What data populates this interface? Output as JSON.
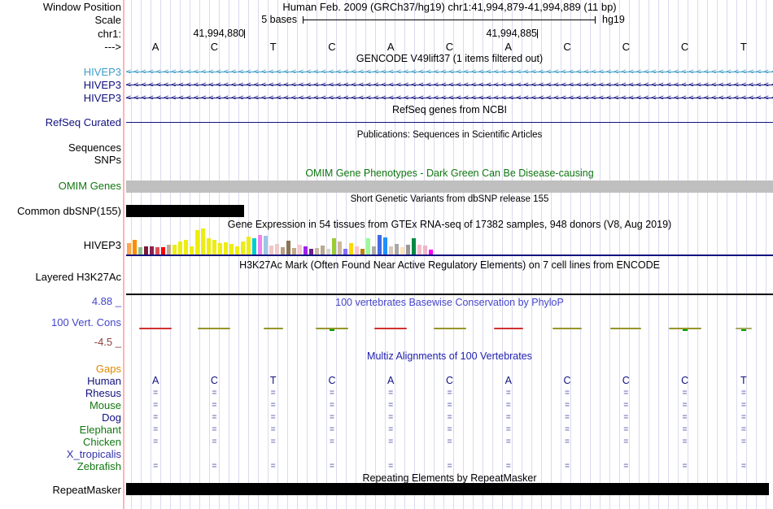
{
  "header": {
    "assembly_position_line": "Human Feb. 2009 (GRCh37/hg19)   chr1:41,994,879-41,994,889 (11 bp)"
  },
  "gutter": {
    "window_position_label": "Window Position",
    "scale_label": "Scale",
    "chrom_label": "chr1:",
    "strand_label": "--->"
  },
  "scale": {
    "bases_label": "5 bases",
    "genome_label": "hg19"
  },
  "position_ticks": {
    "tick1": "41,994,880",
    "tick2": "41,994,885"
  },
  "sequence": {
    "bases": [
      "A",
      "C",
      "T",
      "C",
      "A",
      "C",
      "A",
      "C",
      "C",
      "C",
      "T"
    ]
  },
  "tracks": {
    "gencode": {
      "title": "GENCODE V49lift37 (1 items filtered out)",
      "transcripts": [
        {
          "label": "HIVEP3",
          "color": "#3E9CC8"
        },
        {
          "label": "HIVEP3",
          "color": "#10107E"
        },
        {
          "label": "HIVEP3",
          "color": "#10107E"
        }
      ],
      "arrow_icon": "<"
    },
    "refseq": {
      "title": "RefSeq genes from NCBI",
      "label": "RefSeq Curated",
      "line_color": "#10107E"
    },
    "publications": {
      "title": "Publications: Sequences in Scientific Articles",
      "label_sequences": "Sequences",
      "label_snps": "SNPs"
    },
    "omim": {
      "title": "OMIM Gene Phenotypes - Dark Green Can Be Disease-causing",
      "label": "OMIM Genes",
      "title_color": "#117711",
      "bar_color": "#BFBFBF"
    },
    "dbsnp": {
      "title": "Short Genetic Variants from dbSNP release 155",
      "label": "Common dbSNP(155)",
      "bar_color": "#000000"
    },
    "gtex": {
      "title": "Gene Expression in 54 tissues from GTEx RNA-seq of 17382 samples, 948 donors (V8, Aug 2019)",
      "label": "HIVEP3",
      "baseline_color": "#10107E",
      "bars": [
        [
          "#FFA54F",
          14
        ],
        [
          "#FF8C00",
          18
        ],
        [
          "#8FBC8F",
          9
        ],
        [
          "#7A1A3C",
          10
        ],
        [
          "#8B2252",
          10
        ],
        [
          "#E05050",
          9
        ],
        [
          "#FF0000",
          9
        ],
        [
          "#C0A890",
          12
        ],
        [
          "#EDED12",
          12
        ],
        [
          "#EDED12",
          16
        ],
        [
          "#EDED12",
          18
        ],
        [
          "#EDED12",
          10
        ],
        [
          "#EDED12",
          30
        ],
        [
          "#EDED12",
          32
        ],
        [
          "#EDED12",
          20
        ],
        [
          "#EDED12",
          18
        ],
        [
          "#EDED12",
          14
        ],
        [
          "#EDED12",
          15
        ],
        [
          "#EDED12",
          13
        ],
        [
          "#EDED12",
          10
        ],
        [
          "#EDED12",
          16
        ],
        [
          "#EDED12",
          22
        ],
        [
          "#00CED1",
          20
        ],
        [
          "#EE82EE",
          24
        ],
        [
          "#A0C4E4",
          23
        ],
        [
          "#F2C4C4",
          11
        ],
        [
          "#EFC9C9",
          13
        ],
        [
          "#B8A088",
          9
        ],
        [
          "#8B7355",
          17
        ],
        [
          "#C4A884",
          8
        ],
        [
          "#F4C8D0",
          12
        ],
        [
          "#A020F0",
          10
        ],
        [
          "#68228B",
          7
        ],
        [
          "#C8B7A6",
          8
        ],
        [
          "#B8A890",
          11
        ],
        [
          "#D3D3D3",
          7
        ],
        [
          "#9ACD32",
          20
        ],
        [
          "#CDB79E",
          16
        ],
        [
          "#8470FF",
          7
        ],
        [
          "#FFD700",
          14
        ],
        [
          "#FFC0CB",
          10
        ],
        [
          "#B8860B",
          7
        ],
        [
          "#98FB98",
          20
        ],
        [
          "#A9A9A9",
          10
        ],
        [
          "#4169E1",
          24
        ],
        [
          "#1E90FF",
          21
        ],
        [
          "#D8C8B8",
          10
        ],
        [
          "#A8A8A8",
          13
        ],
        [
          "#FFE4B5",
          9
        ],
        [
          "#989898",
          12
        ],
        [
          "#008B45",
          20
        ],
        [
          "#F4BCC8",
          12
        ],
        [
          "#EEB4C8",
          11
        ],
        [
          "#FF00FF",
          6
        ]
      ]
    },
    "h3k27ac": {
      "title": "H3K27Ac Mark (Often Found Near Active Regulatory Elements) on 7 cell lines from ENCODE",
      "label": "Layered H3K27Ac",
      "baseline_color": "#000000"
    },
    "conservation": {
      "title": "100 vertebrates Basewise Conservation by PhyloP",
      "title_color": "#4545CC",
      "label": "100 Vert. Cons",
      "max_label": "4.88 _",
      "min_label": "-4.5 _",
      "min_label_color": "#8B4040",
      "marks": [
        [
          "#D03030",
          40,
          false
        ],
        [
          "#96962A",
          40,
          false
        ],
        [
          "#96962A",
          24,
          false
        ],
        [
          "#96962A",
          40,
          true
        ],
        [
          "#D03030",
          40,
          false
        ],
        [
          "#96962A",
          40,
          false
        ],
        [
          "#D03030",
          36,
          false
        ],
        [
          "#96962A",
          36,
          false
        ],
        [
          "#96962A",
          38,
          false
        ],
        [
          "#96962A",
          40,
          true
        ],
        [
          "#A8A860",
          20,
          true
        ]
      ]
    },
    "multiz": {
      "title": "Multiz Alignments of 100 Vertebrates",
      "title_color": "#2020B0",
      "eq_mark": "=",
      "eq_color": "#7878BC",
      "letter_color": "#10107E",
      "species": [
        {
          "label": "Gaps",
          "color": "#DD8800",
          "marks": "none"
        },
        {
          "label": "Human",
          "color": "#10107E",
          "marks": "letters"
        },
        {
          "label": "Rhesus",
          "color": "#10107E",
          "marks": "eq"
        },
        {
          "label": "Mouse",
          "color": "#117711",
          "marks": "eq"
        },
        {
          "label": "Dog",
          "color": "#10107E",
          "marks": "eq"
        },
        {
          "label": "Elephant",
          "color": "#117711",
          "marks": "eq"
        },
        {
          "label": "Chicken",
          "color": "#117711",
          "marks": "eq"
        },
        {
          "label": "X_tropicalis",
          "color": "#3333AA",
          "marks": "none"
        },
        {
          "label": "Zebrafish",
          "color": "#117711",
          "marks": "eq"
        }
      ]
    },
    "repeatmasker": {
      "title": "Repeating Elements by RepeatMasker",
      "label": "RepeatMasker",
      "bar_color": "#000000"
    }
  }
}
